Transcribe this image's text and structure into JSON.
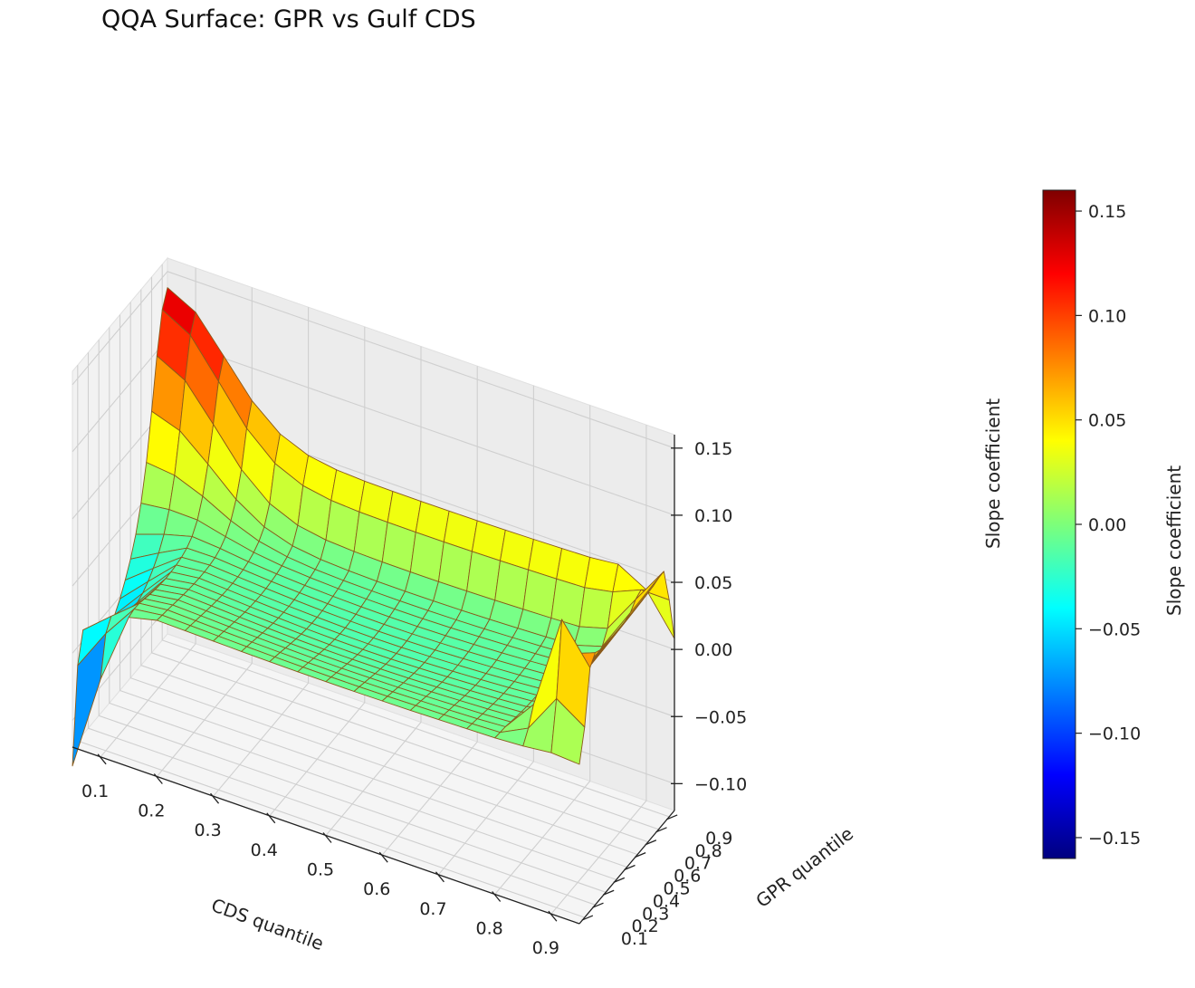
{
  "chart_data": {
    "type": "surface3d",
    "title": "QQA Surface: GPR vs Gulf CDS",
    "xlabel": "CDS quantile",
    "ylabel": "GPR quantile",
    "zlabel": "Slope coefficient",
    "colorbar_label": "Slope coefficient",
    "colormap": "jet",
    "grid": true,
    "xlim": [
      0.05,
      0.95
    ],
    "ylim": [
      0.05,
      0.95
    ],
    "zlim": [
      -0.12,
      0.16
    ],
    "x_ticks": [
      "0.1",
      "0.2",
      "0.3",
      "0.4",
      "0.5",
      "0.6",
      "0.7",
      "0.8",
      "0.9"
    ],
    "y_ticks": [
      "0.1",
      "0.2",
      "0.3",
      "0.4",
      "0.5",
      "0.6",
      "0.7",
      "0.8",
      "0.9"
    ],
    "z_ticks": [
      "0.15",
      "0.10",
      "0.05",
      "0.00",
      "−0.05",
      "−0.10"
    ],
    "colorbar_ticks": [
      "0.15",
      "0.10",
      "0.05",
      "0.00",
      "−0.05",
      "−0.10",
      "−0.15"
    ],
    "colorbar_range": [
      -0.16,
      0.16
    ],
    "grid_quantiles": [
      0.05,
      0.1,
      0.15,
      0.2,
      0.25,
      0.3,
      0.35,
      0.4,
      0.45,
      0.5,
      0.55,
      0.6,
      0.65,
      0.7,
      0.75,
      0.8,
      0.85,
      0.9,
      0.95
    ],
    "surface_description": {
      "base_level": 0.0,
      "ridge_high_gpr_low_cds": 0.14,
      "edge_low_gpr_low_cds": -0.11,
      "valley_low_cds_mid_gpr": -0.06,
      "ridge_high_cds_edge": 0.07,
      "spike_high_cds_low_gpr": 0.07,
      "corner_high_cds_high_gpr": -0.04,
      "edge_high_gpr": 0.05
    }
  }
}
